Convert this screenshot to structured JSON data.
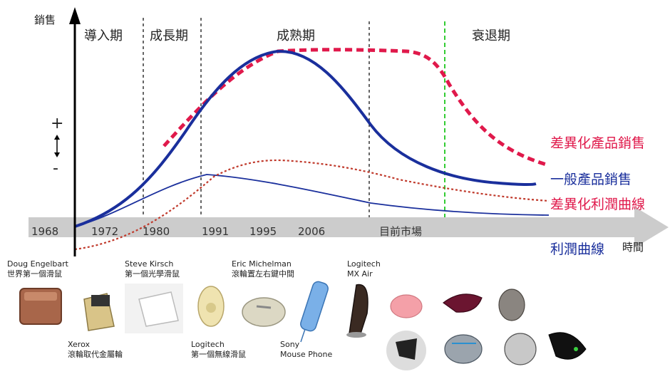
{
  "axis": {
    "y_label": "銷售",
    "plus": "+",
    "minus": "-",
    "x_label": "時間"
  },
  "stages": [
    "導入期",
    "成長期",
    "成熟期",
    "衰退期"
  ],
  "years": [
    "1968",
    "1972",
    "1980",
    "1991",
    "1995",
    "2006",
    "目前市場"
  ],
  "legend": {
    "diff_sales": "差異化產品銷售",
    "normal_sales": "一般產品銷售",
    "diff_profit": "差異化利潤曲線",
    "profit": "利潤曲線"
  },
  "colors": {
    "sales": "#1a2f9c",
    "diff": "#e0194b",
    "profit_dotted": "#c0392b",
    "divider_green": "#33cc33",
    "arrow": "#cccccc"
  },
  "products": {
    "engelbart": {
      "name": "Doug Engelbart",
      "desc": "世界第一個滑鼠"
    },
    "xerox": {
      "name": "Xerox",
      "desc": "滾輪取代金屬輪"
    },
    "kirsch": {
      "name": "Steve Kirsch",
      "desc": "第一個光學滑鼠"
    },
    "logitech_wireless": {
      "name": "Logitech",
      "desc": "第一個無線滑鼠"
    },
    "michelman": {
      "name": "Eric Michelman",
      "desc": "滾輪置左右鍵中間"
    },
    "sony": {
      "name": "Sony",
      "desc": "Mouse Phone"
    },
    "mxair": {
      "name": "Logitech",
      "desc": "MX Air"
    }
  }
}
